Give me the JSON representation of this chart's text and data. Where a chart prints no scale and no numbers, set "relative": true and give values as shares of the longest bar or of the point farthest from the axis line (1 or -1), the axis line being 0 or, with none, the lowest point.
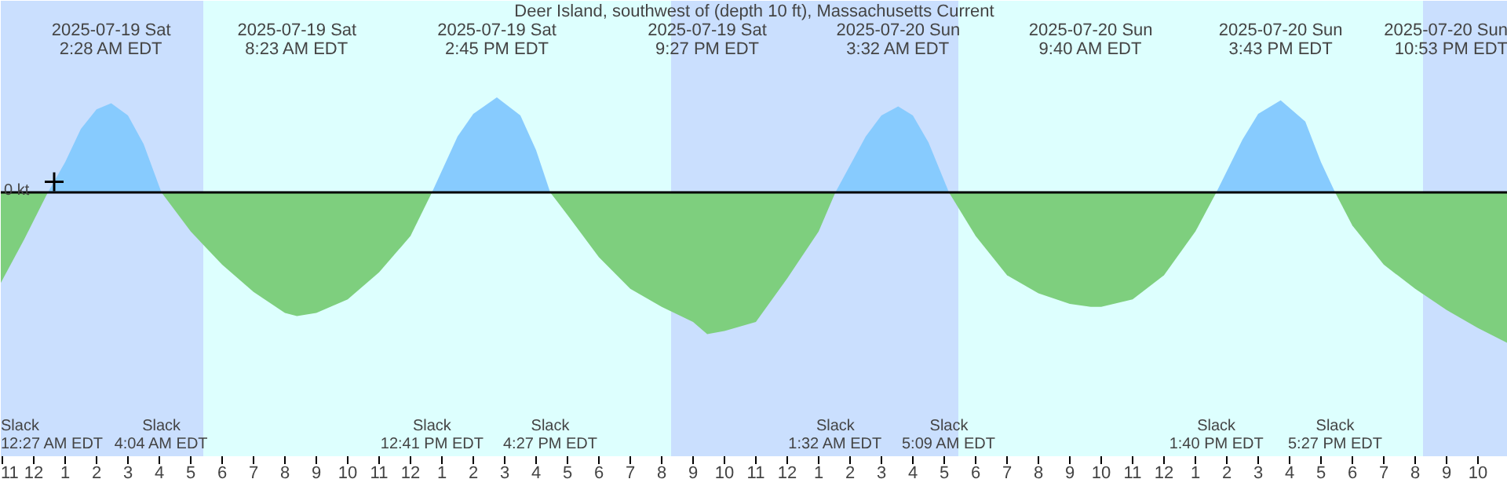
{
  "chart_data": {
    "type": "area",
    "title": "Deer Island, southwest of (depth 10 ft), Massachusetts Current",
    "relative": true,
    "xlim": [
      "2025-07-18T22:57",
      "2025-07-20T22:57"
    ],
    "xticks": [
      {
        "value": "2025-07-18T23:00",
        "label": "11"
      },
      {
        "value": "2025-07-19T00:00",
        "label": "12"
      },
      {
        "value": "2025-07-19T01:00",
        "label": "1"
      },
      {
        "value": "2025-07-19T02:00",
        "label": "2"
      },
      {
        "value": "2025-07-19T03:00",
        "label": "3"
      },
      {
        "value": "2025-07-19T04:00",
        "label": "4"
      },
      {
        "value": "2025-07-19T05:00",
        "label": "5"
      },
      {
        "value": "2025-07-19T06:00",
        "label": "6"
      },
      {
        "value": "2025-07-19T07:00",
        "label": "7"
      },
      {
        "value": "2025-07-19T08:00",
        "label": "8"
      },
      {
        "value": "2025-07-19T09:00",
        "label": "9"
      },
      {
        "value": "2025-07-19T10:00",
        "label": "10"
      },
      {
        "value": "2025-07-19T11:00",
        "label": "11"
      },
      {
        "value": "2025-07-19T12:00",
        "label": "12"
      },
      {
        "value": "2025-07-19T13:00",
        "label": "1"
      },
      {
        "value": "2025-07-19T14:00",
        "label": "2"
      },
      {
        "value": "2025-07-19T15:00",
        "label": "3"
      },
      {
        "value": "2025-07-19T16:00",
        "label": "4"
      },
      {
        "value": "2025-07-19T17:00",
        "label": "5"
      },
      {
        "value": "2025-07-19T18:00",
        "label": "6"
      },
      {
        "value": "2025-07-19T19:00",
        "label": "7"
      },
      {
        "value": "2025-07-19T20:00",
        "label": "8"
      },
      {
        "value": "2025-07-19T21:00",
        "label": "9"
      },
      {
        "value": "2025-07-19T22:00",
        "label": "10"
      },
      {
        "value": "2025-07-19T23:00",
        "label": "11"
      },
      {
        "value": "2025-07-20T00:00",
        "label": "12"
      },
      {
        "value": "2025-07-20T01:00",
        "label": "1"
      },
      {
        "value": "2025-07-20T02:00",
        "label": "2"
      },
      {
        "value": "2025-07-20T03:00",
        "label": "3"
      },
      {
        "value": "2025-07-20T04:00",
        "label": "4"
      },
      {
        "value": "2025-07-20T05:00",
        "label": "5"
      },
      {
        "value": "2025-07-20T06:00",
        "label": "6"
      },
      {
        "value": "2025-07-20T07:00",
        "label": "7"
      },
      {
        "value": "2025-07-20T08:00",
        "label": "8"
      },
      {
        "value": "2025-07-20T09:00",
        "label": "9"
      },
      {
        "value": "2025-07-20T10:00",
        "label": "10"
      },
      {
        "value": "2025-07-20T11:00",
        "label": "11"
      },
      {
        "value": "2025-07-20T12:00",
        "label": "12"
      },
      {
        "value": "2025-07-20T13:00",
        "label": "1"
      },
      {
        "value": "2025-07-20T14:00",
        "label": "2"
      },
      {
        "value": "2025-07-20T15:00",
        "label": "3"
      },
      {
        "value": "2025-07-20T16:00",
        "label": "4"
      },
      {
        "value": "2025-07-20T17:00",
        "label": "5"
      },
      {
        "value": "2025-07-20T18:00",
        "label": "6"
      },
      {
        "value": "2025-07-20T19:00",
        "label": "7"
      },
      {
        "value": "2025-07-20T20:00",
        "label": "8"
      },
      {
        "value": "2025-07-20T21:00",
        "label": "9"
      },
      {
        "value": "2025-07-20T22:00",
        "label": "10"
      }
    ],
    "bands": [
      {
        "axis": "x",
        "from": "2025-07-18T22:57",
        "to": "2025-07-19T05:24",
        "color": "#cadffe"
      },
      {
        "axis": "x",
        "from": "2025-07-19T05:24",
        "to": "2025-07-19T20:18",
        "color": "#ddfffe"
      },
      {
        "axis": "x",
        "from": "2025-07-19T20:18",
        "to": "2025-07-20T05:27",
        "color": "#cadffe"
      },
      {
        "axis": "x",
        "from": "2025-07-20T05:27",
        "to": "2025-07-20T20:15",
        "color": "#ddfffe"
      },
      {
        "axis": "x",
        "from": "2025-07-20T20:15",
        "to": "2025-07-20T22:57",
        "color": "#cadffe"
      }
    ],
    "ref_lines": [
      {
        "axis": "y",
        "value": 0,
        "color": "#000000"
      }
    ],
    "series": [
      {
        "color": "#87cbfe",
        "x": [
          "2025-07-19T00:27",
          "2025-07-19T01:00",
          "2025-07-19T01:30",
          "2025-07-19T02:00",
          "2025-07-19T02:28",
          "2025-07-19T03:00",
          "2025-07-19T03:30",
          "2025-07-19T04:04",
          "2025-07-19T08:00",
          "2025-07-19T12:41",
          "2025-07-19T13:30",
          "2025-07-19T14:00",
          "2025-07-19T14:45",
          "2025-07-19T15:30",
          "2025-07-19T16:00",
          "2025-07-19T16:27",
          "2025-07-19T21:00",
          "2025-07-20T01:32",
          "2025-07-20T02:30",
          "2025-07-20T03:00",
          "2025-07-20T03:32",
          "2025-07-20T04:00",
          "2025-07-20T04:30",
          "2025-07-20T05:09",
          "2025-07-20T09:00",
          "2025-07-20T13:40",
          "2025-07-20T14:30",
          "2025-07-20T15:00",
          "2025-07-20T15:43",
          "2025-07-20T16:30",
          "2025-07-20T17:00",
          "2025-07-20T17:27"
        ],
        "values": [
          0,
          0.2,
          0.42,
          0.55,
          0.59,
          0.51,
          0.32,
          0,
          null,
          0,
          0.37,
          0.52,
          0.63,
          0.51,
          0.28,
          0,
          null,
          0,
          0.37,
          0.51,
          0.57,
          0.51,
          0.33,
          0,
          null,
          0,
          0.35,
          0.52,
          0.61,
          0.47,
          0.2,
          0
        ]
      },
      {
        "color": "#7ecf7e",
        "x": [
          "2025-07-18T22:57",
          "2025-07-18T23:42",
          "2025-07-19T00:27",
          "2025-07-19T02:00",
          "2025-07-19T04:04",
          "2025-07-19T05:00",
          "2025-07-19T06:00",
          "2025-07-19T07:00",
          "2025-07-19T08:00",
          "2025-07-19T08:23",
          "2025-07-19T09:00",
          "2025-07-19T10:00",
          "2025-07-19T11:00",
          "2025-07-19T12:00",
          "2025-07-19T12:41",
          "2025-07-19T14:00",
          "2025-07-19T16:27",
          "2025-07-19T17:00",
          "2025-07-19T18:00",
          "2025-07-19T19:00",
          "2025-07-19T20:00",
          "2025-07-19T21:00",
          "2025-07-19T21:27",
          "2025-07-19T22:00",
          "2025-07-19T23:00",
          "2025-07-20T00:00",
          "2025-07-20T01:00",
          "2025-07-20T01:32",
          "2025-07-20T03:00",
          "2025-07-20T05:09",
          "2025-07-20T06:00",
          "2025-07-20T07:00",
          "2025-07-20T08:00",
          "2025-07-20T09:00",
          "2025-07-20T09:40",
          "2025-07-20T10:00",
          "2025-07-20T11:00",
          "2025-07-20T12:00",
          "2025-07-20T13:00",
          "2025-07-20T13:40",
          "2025-07-20T15:00",
          "2025-07-20T17:27",
          "2025-07-20T18:00",
          "2025-07-20T19:00",
          "2025-07-20T20:00",
          "2025-07-20T21:00",
          "2025-07-20T22:00",
          "2025-07-20T22:57"
        ],
        "values": [
          -0.6,
          -0.31,
          0,
          null,
          0,
          -0.26,
          -0.48,
          -0.66,
          -0.8,
          -0.82,
          -0.8,
          -0.71,
          -0.53,
          -0.29,
          0,
          null,
          0,
          -0.15,
          -0.43,
          -0.64,
          -0.76,
          -0.86,
          -0.94,
          -0.92,
          -0.86,
          -0.57,
          -0.26,
          0,
          null,
          0,
          -0.29,
          -0.55,
          -0.67,
          -0.74,
          -0.76,
          -0.76,
          -0.71,
          -0.55,
          -0.26,
          0,
          null,
          0,
          -0.22,
          -0.48,
          -0.64,
          -0.78,
          -0.9,
          -1
        ]
      },
      {
        "type": "scatter",
        "marker": "cross",
        "color": "#000000",
        "x": [
          "2025-07-19T00:39"
        ],
        "values": [
          0.07
        ]
      }
    ],
    "annotations": [
      "0 kt",
      "2025-07-19 Sat\n2:28 AM EDT",
      "2025-07-19 Sat\n8:23 AM EDT",
      "2025-07-19 Sat\n2:45 PM EDT",
      "2025-07-19 Sat\n9:27 PM EDT",
      "2025-07-20 Sun\n3:32 AM EDT",
      "2025-07-20 Sun\n9:40 AM EDT",
      "2025-07-20 Sun\n3:43 PM EDT",
      "2025-07-20 Sun\n10:53 PM EDT",
      "Slack\n12:27 AM EDT",
      "Slack\n4:04 AM EDT",
      "Slack\n12:41 PM EDT",
      "Slack\n4:27 PM EDT",
      "Slack\n1:32 AM EDT",
      "Slack\n5:09 AM EDT",
      "Slack\n1:40 PM EDT",
      "Slack\n5:27 PM EDT"
    ]
  }
}
